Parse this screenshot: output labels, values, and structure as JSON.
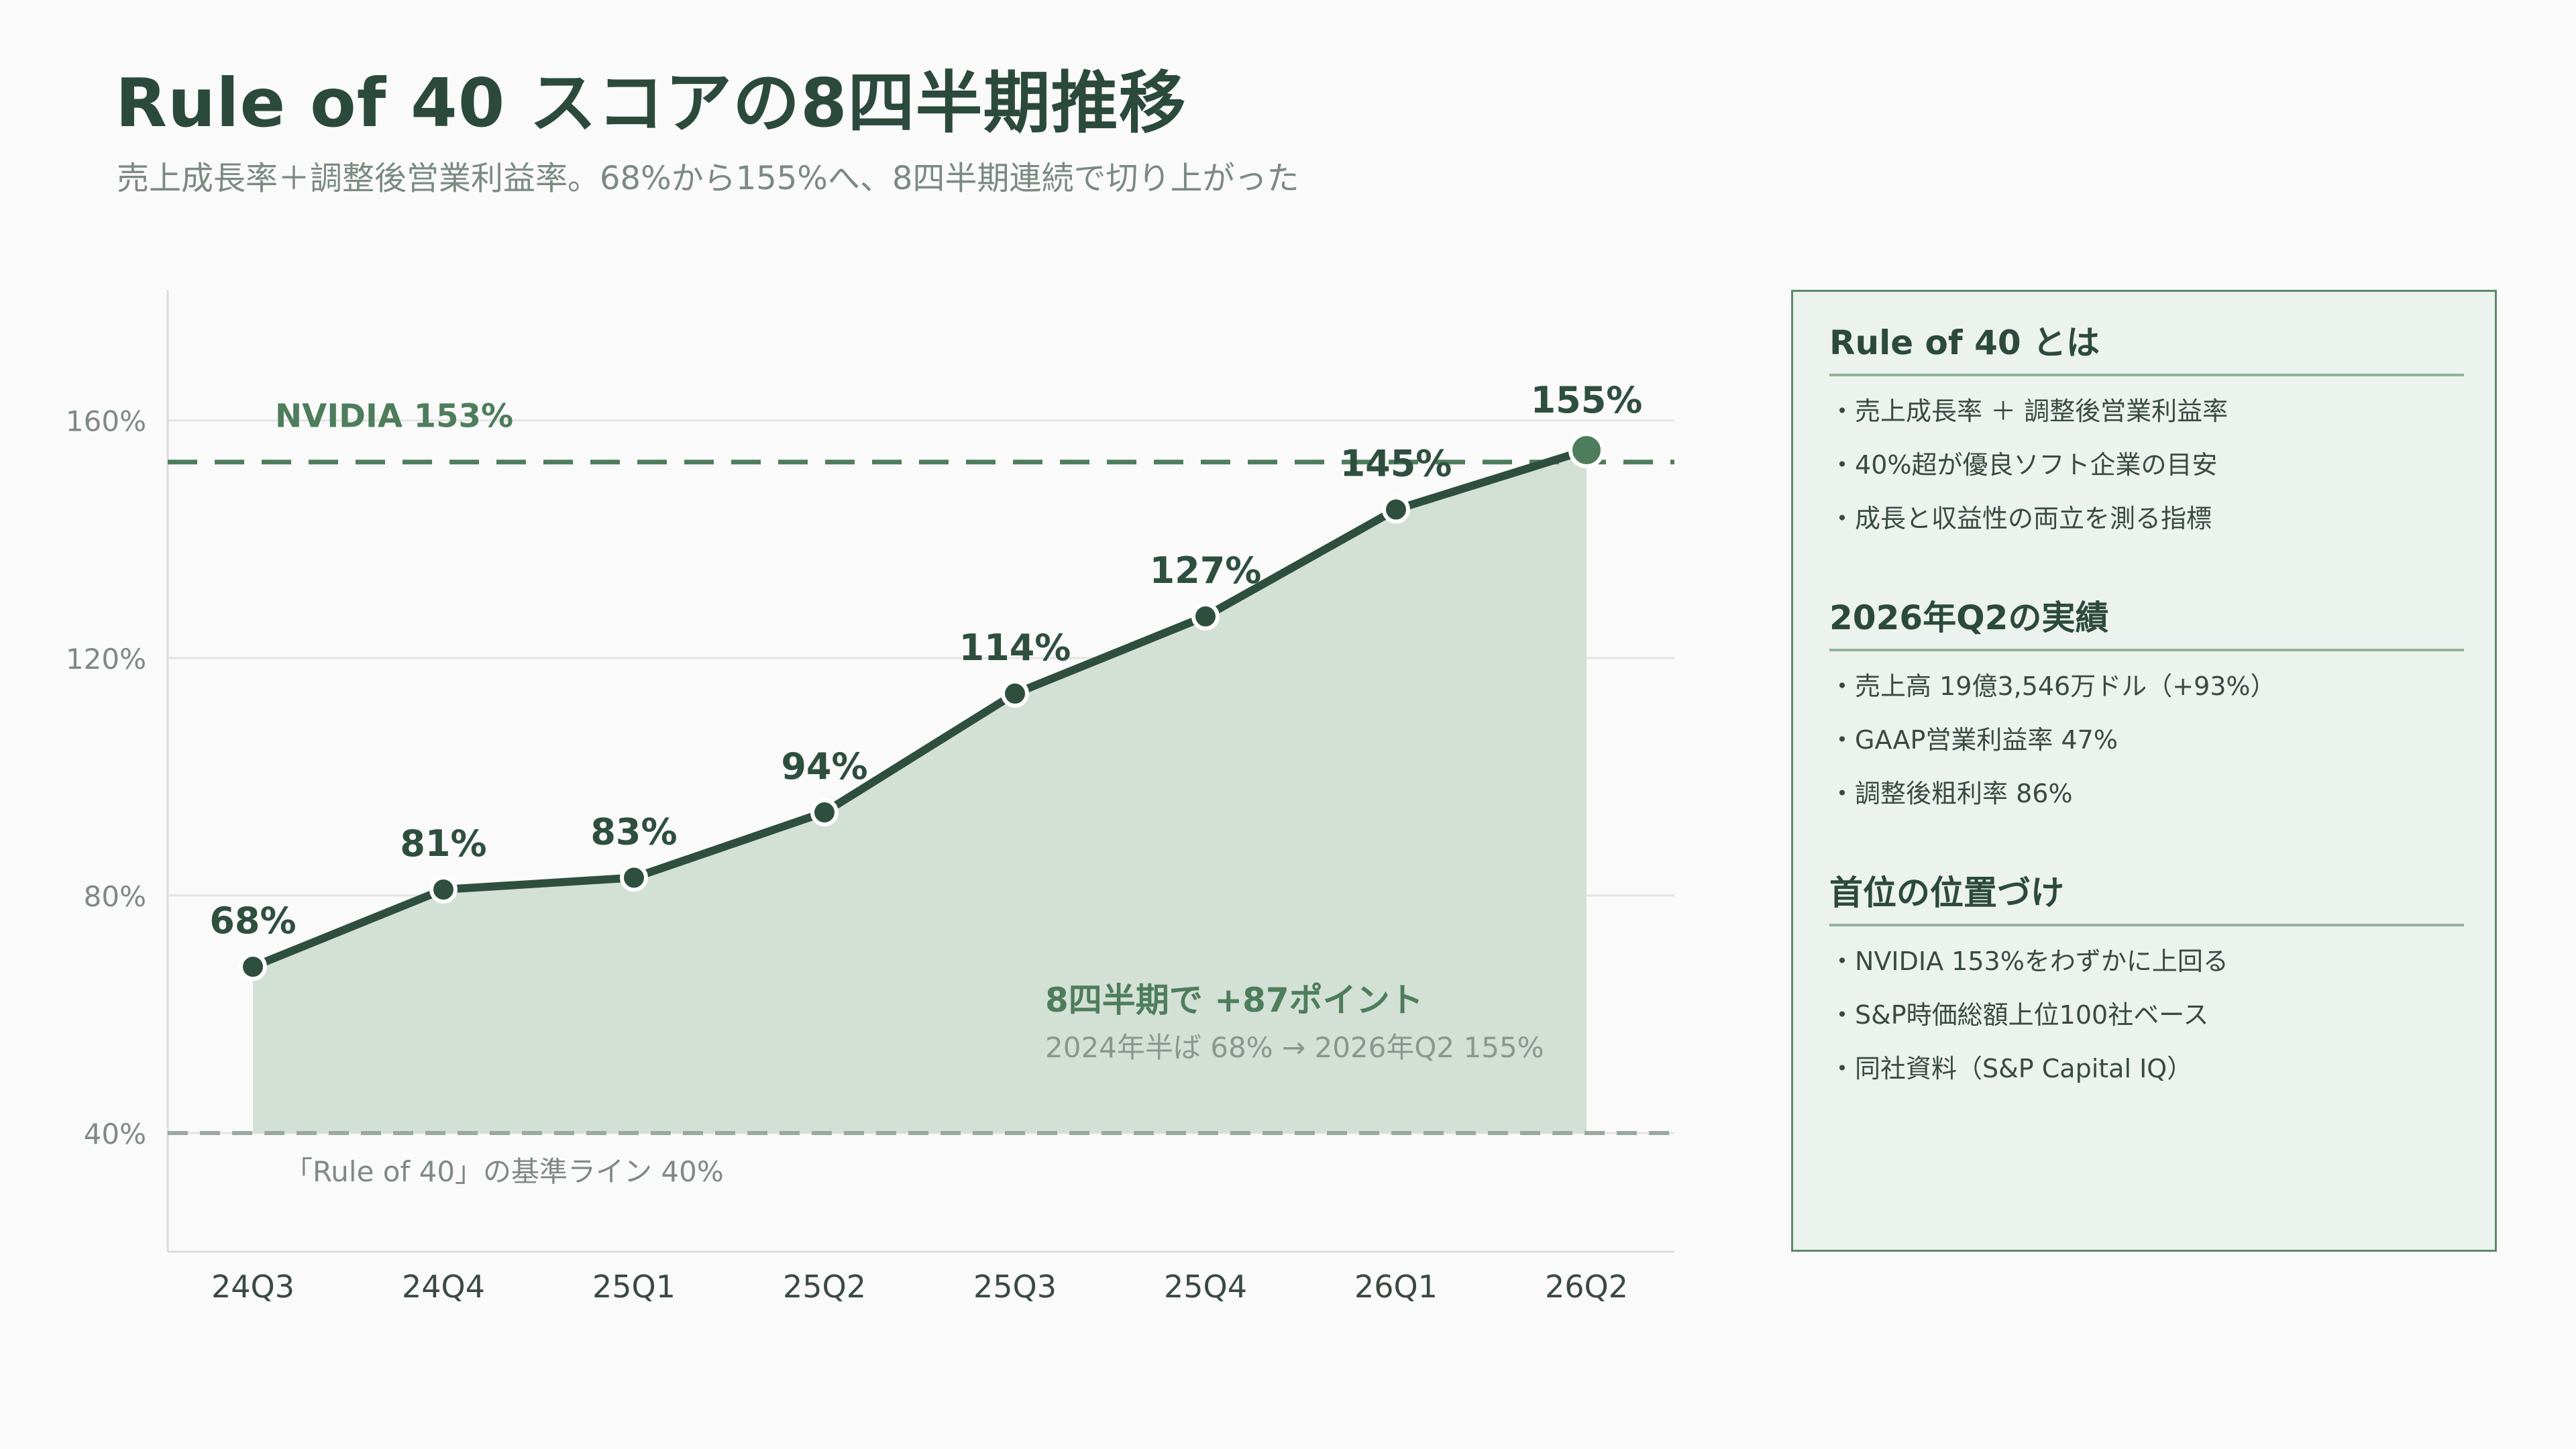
{
  "header": {
    "title": "Rule of 40 スコアの8四半期推移",
    "subtitle": "売上成長率＋調整後営業利益率。68%から155%へ、8四半期連続で切り上がった"
  },
  "colors": {
    "line": "#2f4f3e",
    "area": "#d3e0d5",
    "reference": "#4e7d5c",
    "baseline": "#9aa8a0",
    "highlight_point": "#4e7d5c"
  },
  "chart_data": {
    "type": "area",
    "categories": [
      "24Q3",
      "24Q4",
      "25Q1",
      "25Q2",
      "25Q3",
      "25Q4",
      "26Q1",
      "26Q2"
    ],
    "values": [
      68,
      81,
      83,
      94,
      114,
      127,
      145,
      155
    ],
    "value_labels": [
      "68%",
      "81%",
      "83%",
      "94%",
      "114%",
      "127%",
      "145%",
      "155%"
    ],
    "y_ticks": [
      40,
      80,
      120,
      160
    ],
    "y_tick_labels": [
      "40%",
      "80%",
      "120%",
      "160%"
    ],
    "ylim": [
      20,
      182
    ],
    "grid": true,
    "reference_lines": [
      {
        "value": 153,
        "label": "NVIDIA 153%",
        "style": "dashed"
      },
      {
        "value": 40,
        "label": "「Rule of 40」の基準ライン 40%",
        "style": "dashed"
      }
    ],
    "annotation": {
      "headline": "8四半期で +87ポイント",
      "detail": "2024年半ば 68% → 2026年Q2 155%"
    }
  },
  "panel": {
    "sections": [
      {
        "heading": "Rule of 40 とは",
        "items": [
          "売上成長率 ＋ 調整後営業利益率",
          "40%超が優良ソフト企業の目安",
          "成長と収益性の両立を測る指標"
        ]
      },
      {
        "heading": "2026年Q2の実績",
        "items": [
          "売上高 19億3,546万ドル（+93%）",
          "GAAP営業利益率 47%",
          "調整後粗利率 86%"
        ]
      },
      {
        "heading": "首位の位置づけ",
        "items": [
          "NVIDIA 153%をわずかに上回る",
          "S&P時価総額上位100社ベース",
          "同社資料（S&P Capital IQ）"
        ]
      }
    ]
  }
}
